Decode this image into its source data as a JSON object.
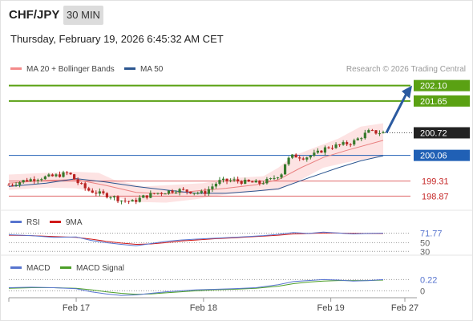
{
  "header": {
    "symbol": "CHF/JPY",
    "timeframe": "30 MIN",
    "datetime": "Thursday, February 19, 2026 6:45:32 AM CET",
    "credit": "Research © 2026 Trading Central"
  },
  "colors": {
    "up": "#37792c",
    "down": "#b92322",
    "bb": "#f29a9a",
    "bb_fill": "#fde3e3",
    "ma50": "#2c5690",
    "green": "#5aa113",
    "blue": "#2060b5",
    "red": "#e0696b",
    "rsi": "#5875cf",
    "macd_signal": "#4c9f28"
  },
  "chart_data": [
    {
      "type": "candlestick",
      "name": "price",
      "legend": [
        {
          "label": "MA 20 + Bollinger Bands",
          "color": "#f48a8a"
        },
        {
          "label": "MA 50",
          "color": "#2c5690"
        }
      ],
      "ylim": [
        198.55,
        202.35
      ],
      "x_ticks": [
        {
          "label": "Feb 17",
          "t": 0.18
        },
        {
          "label": "Feb 18",
          "t": 0.52
        },
        {
          "label": "Feb 19",
          "t": 0.86
        },
        {
          "label": "Feb 27",
          "t": 1.0
        }
      ],
      "levels": [
        {
          "value": 202.1,
          "label": "202.10",
          "kind": "resistance"
        },
        {
          "value": 201.65,
          "label": "201.65",
          "kind": "resistance"
        },
        {
          "value": 200.06,
          "label": "200.06",
          "kind": "pivot"
        },
        {
          "value": 199.31,
          "label": "199.31",
          "kind": "support"
        },
        {
          "value": 198.87,
          "label": "198.87",
          "kind": "support"
        }
      ],
      "last_price": {
        "value": 200.72,
        "label": "200.72"
      },
      "arrow": {
        "from_value": 200.72,
        "to_value": 202.1
      },
      "close_path": [
        [
          0.0,
          199.2
        ],
        [
          0.04,
          199.32
        ],
        [
          0.08,
          199.4
        ],
        [
          0.12,
          199.45
        ],
        [
          0.16,
          199.55
        ],
        [
          0.18,
          199.3
        ],
        [
          0.21,
          199.05
        ],
        [
          0.24,
          198.95
        ],
        [
          0.27,
          198.88
        ],
        [
          0.3,
          198.75
        ],
        [
          0.33,
          198.7
        ],
        [
          0.36,
          198.85
        ],
        [
          0.39,
          198.95
        ],
        [
          0.42,
          199.0
        ],
        [
          0.45,
          199.05
        ],
        [
          0.49,
          199.0
        ],
        [
          0.52,
          198.95
        ],
        [
          0.56,
          199.3
        ],
        [
          0.6,
          199.33
        ],
        [
          0.63,
          199.28
        ],
        [
          0.67,
          199.25
        ],
        [
          0.7,
          199.35
        ],
        [
          0.73,
          199.55
        ],
        [
          0.74,
          199.9
        ],
        [
          0.76,
          200.05
        ],
        [
          0.79,
          200.0
        ],
        [
          0.82,
          200.1
        ],
        [
          0.85,
          200.3
        ],
        [
          0.88,
          200.35
        ],
        [
          0.92,
          200.45
        ],
        [
          0.96,
          200.75
        ],
        [
          1.0,
          200.72
        ]
      ],
      "ma20": [
        [
          0.0,
          199.25
        ],
        [
          0.1,
          199.33
        ],
        [
          0.18,
          199.35
        ],
        [
          0.26,
          199.18
        ],
        [
          0.34,
          198.98
        ],
        [
          0.42,
          198.93
        ],
        [
          0.5,
          199.02
        ],
        [
          0.58,
          199.1
        ],
        [
          0.66,
          199.2
        ],
        [
          0.72,
          199.35
        ],
        [
          0.78,
          199.7
        ],
        [
          0.84,
          200.0
        ],
        [
          0.9,
          200.2
        ],
        [
          1.0,
          200.5
        ]
      ],
      "bb_upper": [
        [
          0.0,
          199.5
        ],
        [
          0.1,
          199.55
        ],
        [
          0.18,
          199.58
        ],
        [
          0.24,
          199.55
        ],
        [
          0.28,
          199.35
        ],
        [
          0.36,
          199.15
        ],
        [
          0.44,
          199.2
        ],
        [
          0.52,
          199.25
        ],
        [
          0.6,
          199.4
        ],
        [
          0.68,
          199.45
        ],
        [
          0.72,
          199.7
        ],
        [
          0.76,
          200.05
        ],
        [
          0.82,
          200.3
        ],
        [
          0.88,
          200.55
        ],
        [
          0.94,
          200.9
        ],
        [
          1.0,
          201.0
        ]
      ],
      "bb_lower": [
        [
          0.0,
          199.05
        ],
        [
          0.1,
          199.12
        ],
        [
          0.18,
          199.1
        ],
        [
          0.26,
          198.9
        ],
        [
          0.34,
          198.7
        ],
        [
          0.42,
          198.68
        ],
        [
          0.5,
          198.78
        ],
        [
          0.58,
          198.92
        ],
        [
          0.66,
          199.0
        ],
        [
          0.72,
          199.05
        ],
        [
          0.78,
          199.35
        ],
        [
          0.84,
          199.7
        ],
        [
          0.9,
          199.85
        ],
        [
          1.0,
          200.05
        ]
      ],
      "ma50": [
        [
          0.0,
          199.15
        ],
        [
          0.1,
          199.25
        ],
        [
          0.18,
          199.38
        ],
        [
          0.26,
          199.28
        ],
        [
          0.34,
          199.15
        ],
        [
          0.42,
          199.05
        ],
        [
          0.5,
          198.95
        ],
        [
          0.58,
          198.95
        ],
        [
          0.66,
          199.02
        ],
        [
          0.72,
          199.08
        ],
        [
          0.8,
          199.4
        ],
        [
          0.88,
          199.7
        ],
        [
          0.94,
          199.9
        ],
        [
          1.0,
          200.05
        ]
      ]
    },
    {
      "type": "line",
      "name": "rsi",
      "legend": [
        {
          "label": "RSI",
          "color": "#5875cf"
        },
        {
          "label": "9MA",
          "color": "#d01a1a"
        }
      ],
      "ylim": [
        25,
        80
      ],
      "levels": [
        {
          "value": 71.77,
          "label": "71.77"
        },
        {
          "value": 50,
          "label": "50"
        },
        {
          "value": 30,
          "label": "30"
        }
      ],
      "rsi": [
        [
          0.0,
          68
        ],
        [
          0.06,
          66
        ],
        [
          0.12,
          62
        ],
        [
          0.18,
          63
        ],
        [
          0.22,
          55
        ],
        [
          0.26,
          50
        ],
        [
          0.3,
          46
        ],
        [
          0.34,
          43
        ],
        [
          0.38,
          48
        ],
        [
          0.42,
          53
        ],
        [
          0.46,
          56
        ],
        [
          0.5,
          58
        ],
        [
          0.55,
          60
        ],
        [
          0.6,
          62
        ],
        [
          0.64,
          64
        ],
        [
          0.68,
          66
        ],
        [
          0.72,
          69
        ],
        [
          0.76,
          73
        ],
        [
          0.8,
          71
        ],
        [
          0.84,
          74
        ],
        [
          0.88,
          72
        ],
        [
          0.92,
          70
        ],
        [
          0.96,
          71
        ],
        [
          1.0,
          71.77
        ]
      ],
      "ma9": [
        [
          0.0,
          67
        ],
        [
          0.06,
          66
        ],
        [
          0.12,
          64
        ],
        [
          0.18,
          62
        ],
        [
          0.22,
          58
        ],
        [
          0.26,
          53
        ],
        [
          0.3,
          49
        ],
        [
          0.34,
          46
        ],
        [
          0.38,
          47
        ],
        [
          0.42,
          50
        ],
        [
          0.46,
          54
        ],
        [
          0.5,
          56
        ],
        [
          0.55,
          59
        ],
        [
          0.6,
          61
        ],
        [
          0.64,
          63
        ],
        [
          0.68,
          65
        ],
        [
          0.72,
          67
        ],
        [
          0.76,
          70
        ],
        [
          0.8,
          71
        ],
        [
          0.84,
          72
        ],
        [
          0.88,
          72
        ],
        [
          0.92,
          71
        ],
        [
          0.96,
          71
        ],
        [
          1.0,
          71
        ]
      ]
    },
    {
      "type": "line",
      "name": "macd",
      "legend": [
        {
          "label": "MACD",
          "color": "#5875cf"
        },
        {
          "label": "MACD Signal",
          "color": "#4c9f28"
        }
      ],
      "ylim": [
        -0.12,
        0.32
      ],
      "levels": [
        {
          "value": 0.22,
          "label": "0.22"
        },
        {
          "value": 0,
          "label": "0"
        }
      ],
      "macd": [
        [
          0.0,
          0.06
        ],
        [
          0.06,
          0.07
        ],
        [
          0.12,
          0.06
        ],
        [
          0.18,
          0.04
        ],
        [
          0.22,
          -0.02
        ],
        [
          0.26,
          -0.06
        ],
        [
          0.3,
          -0.09
        ],
        [
          0.34,
          -0.08
        ],
        [
          0.38,
          -0.05
        ],
        [
          0.42,
          -0.02
        ],
        [
          0.46,
          0.0
        ],
        [
          0.5,
          0.02
        ],
        [
          0.55,
          0.03
        ],
        [
          0.6,
          0.04
        ],
        [
          0.66,
          0.06
        ],
        [
          0.72,
          0.12
        ],
        [
          0.76,
          0.18
        ],
        [
          0.8,
          0.2
        ],
        [
          0.84,
          0.22
        ],
        [
          0.88,
          0.21
        ],
        [
          0.92,
          0.19
        ],
        [
          0.96,
          0.2
        ],
        [
          1.0,
          0.22
        ]
      ],
      "signal": [
        [
          0.0,
          0.05
        ],
        [
          0.06,
          0.06
        ],
        [
          0.12,
          0.06
        ],
        [
          0.18,
          0.05
        ],
        [
          0.22,
          0.02
        ],
        [
          0.26,
          -0.02
        ],
        [
          0.3,
          -0.05
        ],
        [
          0.34,
          -0.07
        ],
        [
          0.38,
          -0.06
        ],
        [
          0.42,
          -0.04
        ],
        [
          0.46,
          -0.02
        ],
        [
          0.5,
          0.0
        ],
        [
          0.55,
          0.02
        ],
        [
          0.6,
          0.03
        ],
        [
          0.66,
          0.05
        ],
        [
          0.72,
          0.09
        ],
        [
          0.76,
          0.14
        ],
        [
          0.8,
          0.17
        ],
        [
          0.84,
          0.19
        ],
        [
          0.88,
          0.2
        ],
        [
          0.92,
          0.2
        ],
        [
          0.96,
          0.2
        ],
        [
          1.0,
          0.21
        ]
      ]
    }
  ]
}
